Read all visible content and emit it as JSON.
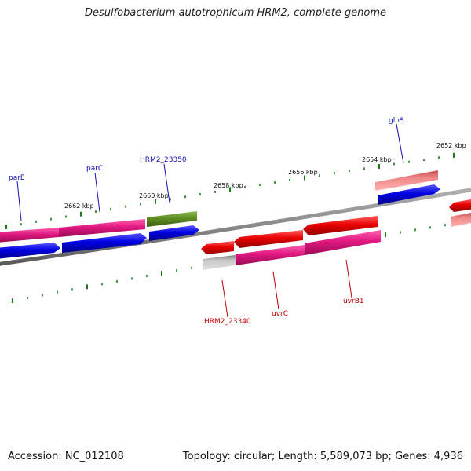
{
  "title": "Desulfobacterium autotrophicum HRM2, complete genome",
  "footer": {
    "accession": "Accession: NC_012108",
    "topology": "Topology: circular; Length: 5,589,073 bp; Genes: 4,936"
  },
  "kbp_labels": [
    "2662 kbp",
    "2660 kbp",
    "2658 kbp",
    "2656 kbp",
    "2654 kbp",
    "2652 kbp"
  ],
  "gene_labels_forward": [
    "parE",
    "parC",
    "HRM2_23350",
    "glnS"
  ],
  "gene_labels_reverse": [
    "HRM2_23340",
    "uvrC",
    "uvrB1"
  ],
  "colors": {
    "forward_label": "#1010b0",
    "reverse_label": "#c00000",
    "tick": "#1a7a1a",
    "backbone": "#888888",
    "magenta": "#e01880",
    "blue": "#0000e0",
    "olive": "#5a8a20",
    "red": "#e80000",
    "salmon": "#e86a6a",
    "grey": "#b8b8b8"
  }
}
